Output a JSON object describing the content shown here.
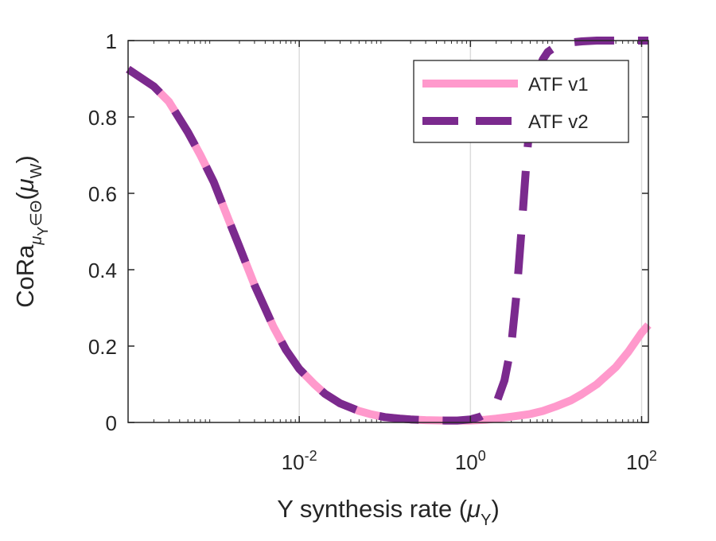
{
  "chart_data": {
    "type": "line",
    "xscale": "log",
    "xlim": [
      0.0001,
      120
    ],
    "ylim": [
      0,
      1
    ],
    "grid": "x-major-only",
    "legend_position": "top-right",
    "xlabel": {
      "text": "Y synthesis rate (",
      "symbol": "μ",
      "subscript": "Y",
      "close": ")"
    },
    "ylabel": {
      "text": "CoRa",
      "subscript": "μ",
      "sub_subscript": "Y",
      "subscript_tail": "∈Θ",
      "paren_open": "(",
      "symbol": "μ",
      "symbol_subscript": "W",
      "paren_close": ")"
    },
    "yticks": [
      {
        "value": 0,
        "label": "0"
      },
      {
        "value": 0.2,
        "label": "0.2"
      },
      {
        "value": 0.4,
        "label": "0.4"
      },
      {
        "value": 0.6,
        "label": "0.6"
      },
      {
        "value": 0.8,
        "label": "0.8"
      },
      {
        "value": 1,
        "label": "1"
      }
    ],
    "xticks": [
      {
        "value": 0.01,
        "base": "10",
        "exp": "-2"
      },
      {
        "value": 1,
        "base": "10",
        "exp": "0"
      },
      {
        "value": 100,
        "base": "10",
        "exp": "2"
      }
    ],
    "series": [
      {
        "name": "ATF v1",
        "color": "#ff99cc",
        "style": "solid",
        "x": [
          0.0001,
          0.0002,
          0.0003,
          0.0005,
          0.0007,
          0.001,
          0.0015,
          0.002,
          0.003,
          0.005,
          0.007,
          0.01,
          0.015,
          0.02,
          0.03,
          0.05,
          0.07,
          0.1,
          0.15,
          0.2,
          0.3,
          0.5,
          0.7,
          1,
          1.5,
          2,
          3,
          5,
          7,
          10,
          15,
          20,
          30,
          50,
          70,
          100,
          120
        ],
        "y": [
          0.925,
          0.88,
          0.84,
          0.76,
          0.7,
          0.63,
          0.53,
          0.46,
          0.36,
          0.25,
          0.19,
          0.14,
          0.1,
          0.075,
          0.05,
          0.03,
          0.021,
          0.014,
          0.01,
          0.008,
          0.006,
          0.005,
          0.005,
          0.005,
          0.007,
          0.01,
          0.015,
          0.022,
          0.03,
          0.042,
          0.058,
          0.074,
          0.1,
          0.145,
          0.185,
          0.235,
          0.255
        ]
      },
      {
        "name": "ATF v2",
        "color": "#7b2a8e",
        "style": "dashed",
        "x": [
          0.0001,
          0.0002,
          0.0003,
          0.0005,
          0.0007,
          0.001,
          0.0015,
          0.002,
          0.003,
          0.005,
          0.007,
          0.01,
          0.015,
          0.02,
          0.03,
          0.05,
          0.07,
          0.1,
          0.15,
          0.2,
          0.3,
          0.5,
          0.7,
          1,
          1.3,
          1.7,
          2,
          2.5,
          3,
          3.5,
          4,
          4.5,
          5,
          5.5,
          6,
          7,
          8,
          10,
          15,
          20,
          30,
          50,
          70,
          100,
          120
        ],
        "y": [
          0.925,
          0.88,
          0.84,
          0.76,
          0.7,
          0.63,
          0.53,
          0.46,
          0.36,
          0.25,
          0.19,
          0.14,
          0.1,
          0.075,
          0.05,
          0.03,
          0.021,
          0.014,
          0.01,
          0.008,
          0.006,
          0.005,
          0.005,
          0.008,
          0.015,
          0.03,
          0.05,
          0.11,
          0.2,
          0.35,
          0.52,
          0.68,
          0.8,
          0.87,
          0.91,
          0.95,
          0.97,
          0.985,
          0.995,
          0.998,
          1.0,
          1.0,
          1.0,
          1.0,
          1.0
        ]
      }
    ]
  }
}
